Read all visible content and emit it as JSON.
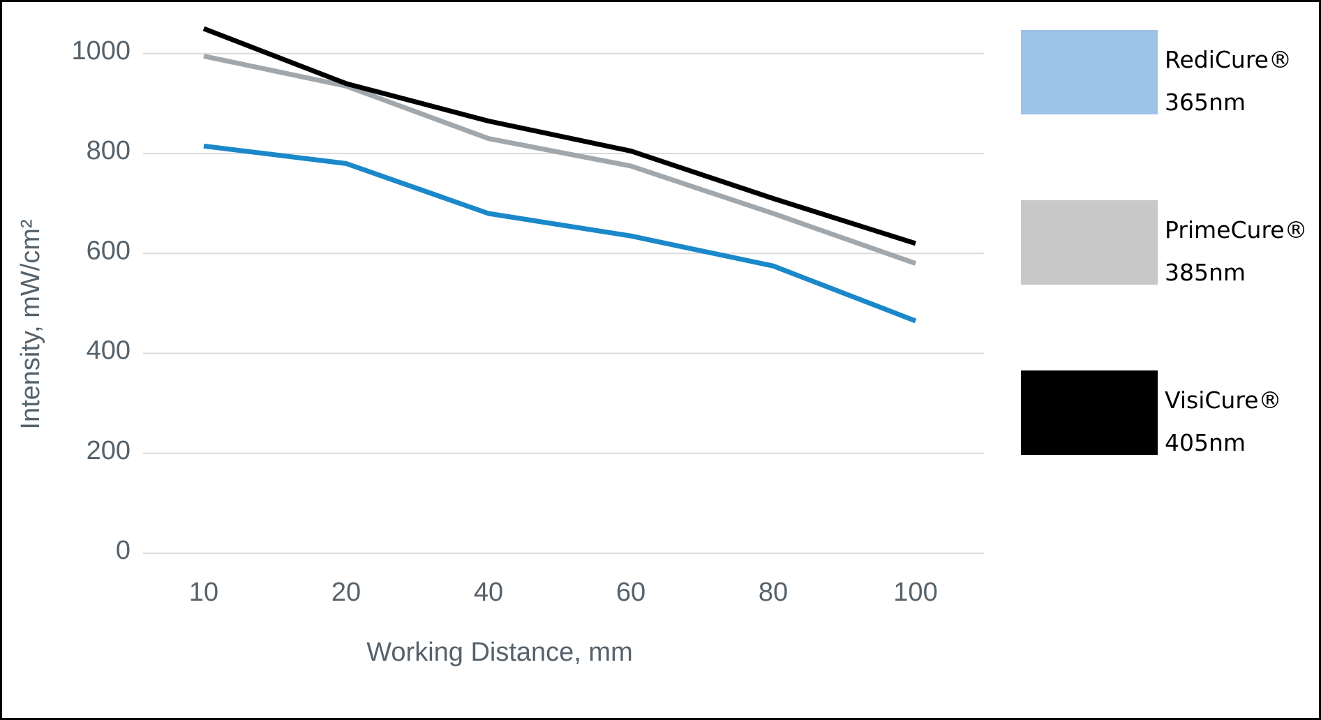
{
  "chart_data": {
    "type": "line",
    "x_label": "Working Distance, mm",
    "y_label": "Intensity, mW/cm²",
    "categories": [
      "10",
      "20",
      "40",
      "60",
      "80",
      "100"
    ],
    "series": [
      {
        "name": "RediCure® 365nm",
        "color": "#1a88c9",
        "legend_color": "#9dc3e6",
        "values": [
          815,
          780,
          680,
          635,
          575,
          465
        ]
      },
      {
        "name": "PrimeCure® 385nm",
        "color": "#a0a8ae",
        "legend_color": "#c8c8c8",
        "values": [
          995,
          935,
          830,
          775,
          680,
          580
        ]
      },
      {
        "name": "VisiCure® 405nm",
        "color": "#000000",
        "legend_color": "#000000",
        "values": [
          1050,
          940,
          865,
          805,
          710,
          620
        ]
      }
    ],
    "ylim": [
      0,
      1050
    ],
    "yticks": [
      0,
      200,
      400,
      600,
      800,
      1000
    ],
    "grid": true
  }
}
